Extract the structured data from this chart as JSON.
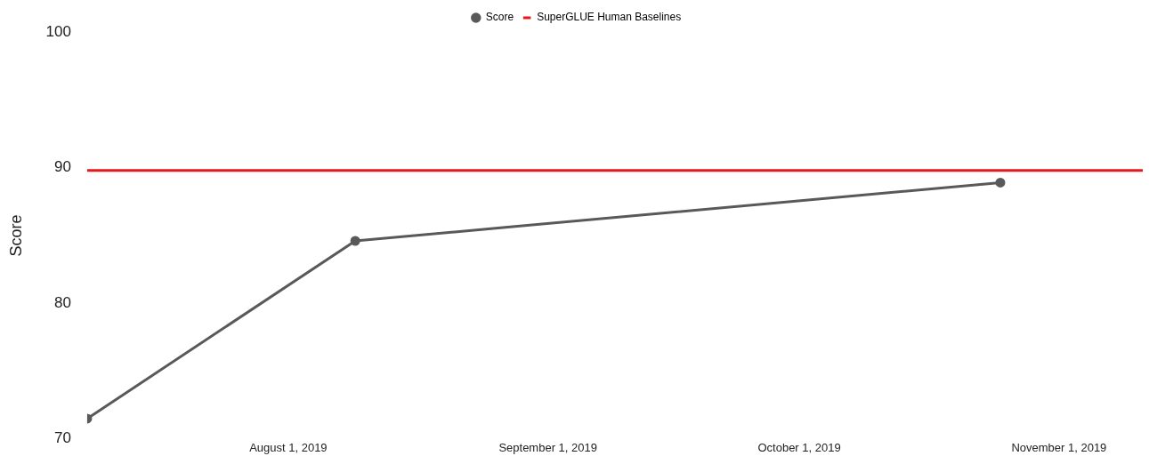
{
  "chart_data": {
    "type": "line",
    "ylabel": "Score",
    "legend": "top",
    "marker": "circle",
    "grid": false,
    "xlim": [
      "2019-07-08",
      "2019-11-11"
    ],
    "xticks": [
      {
        "value": "2019-08-01",
        "label": "August 1, 2019"
      },
      {
        "value": "2019-09-01",
        "label": "September 1, 2019"
      },
      {
        "value": "2019-10-01",
        "label": "October 1, 2019"
      },
      {
        "value": "2019-11-01",
        "label": "November 1, 2019"
      }
    ],
    "ylim": [
      70,
      100
    ],
    "yticks": [
      70,
      80,
      90,
      100
    ],
    "series": [
      {
        "name": "Score",
        "color": "#595959",
        "x": [
          "2019-07-08",
          "2019-08-09",
          "2019-10-25"
        ],
        "values": [
          71.5,
          84.6,
          88.9
        ]
      },
      {
        "name": "SuperGLUE Human Baselines",
        "color": "#e8171e",
        "marker": "none",
        "x": [
          "2019-07-08",
          "2019-11-11"
        ],
        "values": [
          89.8,
          89.8
        ]
      }
    ]
  }
}
